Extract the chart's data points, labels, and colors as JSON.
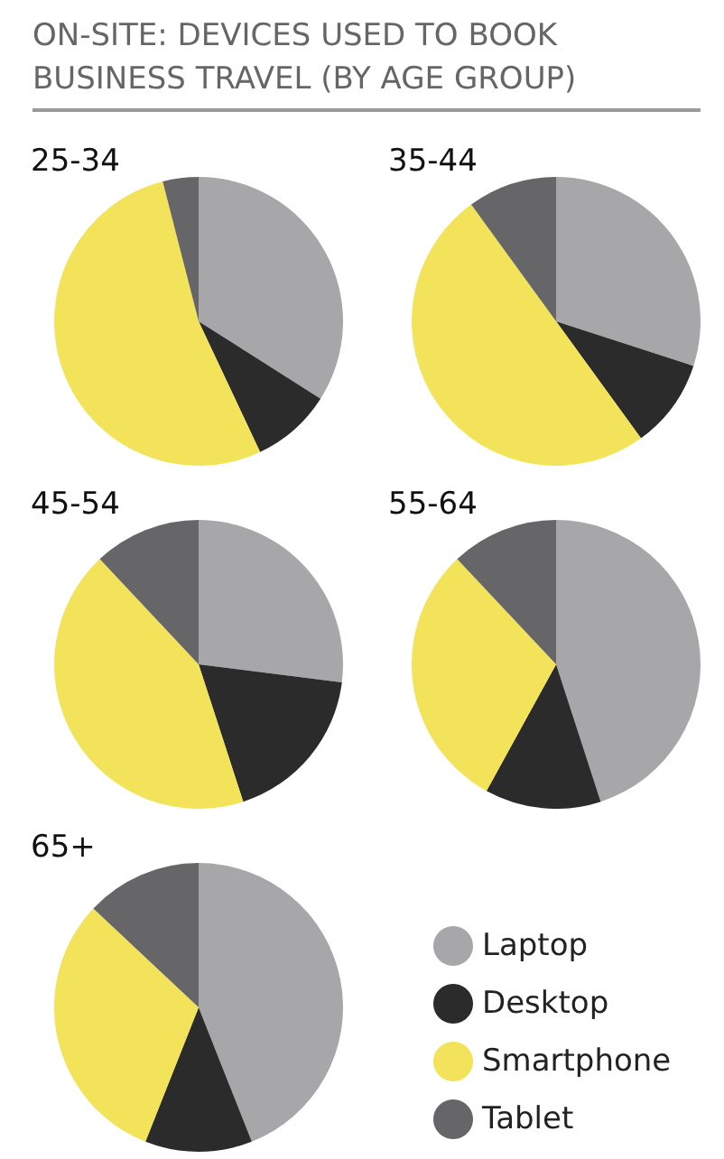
{
  "chart_data": [
    {
      "type": "pie",
      "title": "ON-SITE: DEVICES USED TO BOOK BUSINESS TRAVEL (BY AGE GROUP)",
      "subtitle": "25-34",
      "categories": [
        null,
        null,
        null,
        null
      ],
      "values": [
        34,
        9,
        53,
        4
      ],
      "colors": [
        "#a7a7a9",
        "#2b2b2b",
        "#f2e35a",
        "#666668"
      ]
    },
    {
      "type": "pie",
      "subtitle": "35-44",
      "categories": [
        null,
        null,
        null,
        null
      ],
      "values": [
        30,
        10,
        50,
        10
      ],
      "colors": [
        "#a7a7a9",
        "#2b2b2b",
        "#f2e35a",
        "#666668"
      ]
    },
    {
      "type": "pie",
      "subtitle": "45-54",
      "categories": [
        null,
        null,
        null,
        null
      ],
      "values": [
        27,
        18,
        43,
        12
      ],
      "colors": [
        "#a7a7a9",
        "#2b2b2b",
        "#f2e35a",
        "#666668"
      ]
    },
    {
      "type": "pie",
      "subtitle": "55-64",
      "categories": [
        null,
        null,
        null,
        null
      ],
      "values": [
        45,
        13,
        30,
        12
      ],
      "colors": [
        "#a7a7a9",
        "#2b2b2b",
        "#f2e35a",
        "#666668"
      ]
    },
    {
      "type": "pie",
      "subtitle": "65+",
      "categories": [
        "Laptop",
        "Desktop",
        "Smartphone",
        "Tablet"
      ],
      "values": [
        44,
        12,
        31,
        13
      ],
      "colors": [
        "#a7a7a9",
        "#2b2b2b",
        "#f2e35a",
        "#666668"
      ],
      "legend": "right"
    }
  ]
}
